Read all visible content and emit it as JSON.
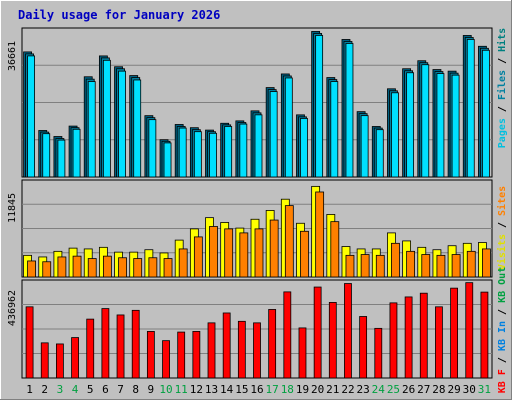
{
  "window": {
    "title": "Daily usage for January 2026"
  },
  "colors": {
    "frame_bg": "#c0c0c0",
    "frame_bevel_light": "#ffffff",
    "frame_bevel_dark": "#808080",
    "plot_bg": "#c0c0c0",
    "title_color": "#0000c0",
    "axis_text": "#000000",
    "weekend_text": "#00a040",
    "pages_front": "#00e0ff",
    "pages_back": "#0080a0",
    "files_back": "#006080",
    "visits_color": "#ffff00",
    "sites_color": "#ff8000",
    "kb_color": "#ff0000",
    "label_sep": "#000000",
    "label_pages": "#00c0e0",
    "label_files": "#0080a0",
    "label_hits": "#008080",
    "label_visits": "#e0e000",
    "label_sites": "#ff8000",
    "label_kbin": "#0080e0",
    "label_kbout": "#00a040",
    "label_kbf": "#ff0000"
  },
  "chart_data": [
    {
      "type": "bar",
      "panel": "hits-files-pages",
      "ymax_label": "36661",
      "ylim": [
        0,
        36661
      ],
      "right_labels": [
        "Pages",
        "Files",
        "Hits"
      ],
      "categories": [
        "1",
        "2",
        "3",
        "4",
        "5",
        "6",
        "7",
        "8",
        "9",
        "10",
        "11",
        "12",
        "13",
        "14",
        "15",
        "16",
        "17",
        "18",
        "19",
        "20",
        "21",
        "22",
        "23",
        "24",
        "25",
        "26",
        "27",
        "28",
        "29",
        "30",
        "31"
      ],
      "series": [
        {
          "name": "Hits",
          "values": [
            31200,
            11600,
            10100,
            12700,
            25000,
            30200,
            27500,
            25300,
            15300,
            9300,
            13100,
            12300,
            11700,
            13400,
            14000,
            16500,
            22300,
            25700,
            15500,
            36300,
            24800,
            34300,
            16300,
            12600,
            22000,
            27000,
            29000,
            26800,
            26400,
            35300,
            32600
          ]
        },
        {
          "name": "Files",
          "values": [
            30700,
            11200,
            9600,
            12300,
            24400,
            29700,
            27000,
            24800,
            14800,
            8900,
            12600,
            11800,
            11300,
            13000,
            13600,
            16000,
            21800,
            25200,
            15000,
            35800,
            24300,
            33800,
            15800,
            12200,
            21500,
            26500,
            28500,
            26300,
            25900,
            34800,
            32100
          ]
        },
        {
          "name": "Pages",
          "values": [
            30200,
            10800,
            9200,
            11900,
            23800,
            29100,
            26400,
            24200,
            14300,
            8500,
            12200,
            11300,
            10900,
            12600,
            13200,
            15500,
            21300,
            24700,
            14600,
            35300,
            23800,
            33300,
            15300,
            11800,
            21000,
            26000,
            28000,
            25800,
            25400,
            34300,
            31600
          ]
        }
      ]
    },
    {
      "type": "bar",
      "panel": "visits-sites",
      "ymax_label": "11845",
      "ylim": [
        0,
        11845
      ],
      "right_labels": [
        "Visits",
        "Sites"
      ],
      "categories": [
        "1",
        "2",
        "3",
        "4",
        "5",
        "6",
        "7",
        "8",
        "9",
        "10",
        "11",
        "12",
        "13",
        "14",
        "15",
        "16",
        "17",
        "18",
        "19",
        "20",
        "21",
        "22",
        "23",
        "24",
        "25",
        "26",
        "27",
        "28",
        "29",
        "30",
        "31"
      ],
      "series": [
        {
          "name": "Visits",
          "values": [
            2700,
            2500,
            3200,
            3600,
            3500,
            3700,
            3100,
            3100,
            3400,
            3000,
            4600,
            6000,
            7400,
            6800,
            6100,
            7200,
            8300,
            9700,
            6700,
            11300,
            7800,
            3800,
            3500,
            3500,
            5500,
            4500,
            3700,
            3400,
            3900,
            4200,
            4300
          ]
        },
        {
          "name": "Sites",
          "values": [
            2000,
            1900,
            2500,
            2600,
            2300,
            2600,
            2400,
            2300,
            2400,
            2300,
            3500,
            5000,
            6300,
            6000,
            5500,
            6000,
            7100,
            8900,
            5700,
            10600,
            6900,
            2700,
            2800,
            2700,
            4200,
            3200,
            2800,
            2700,
            2800,
            3200,
            3500
          ]
        }
      ]
    },
    {
      "type": "bar",
      "panel": "kbytes",
      "ymax_label": "436962",
      "ylim": [
        0,
        436962
      ],
      "right_labels": [
        "KB F",
        "KB In",
        "KB Out"
      ],
      "categories": [
        "1",
        "2",
        "3",
        "4",
        "5",
        "6",
        "7",
        "8",
        "9",
        "10",
        "11",
        "12",
        "13",
        "14",
        "15",
        "16",
        "17",
        "18",
        "19",
        "20",
        "21",
        "22",
        "23",
        "24",
        "25",
        "26",
        "27",
        "28",
        "29",
        "30",
        "31"
      ],
      "series": [
        {
          "name": "KB F",
          "values": [
            324000,
            160000,
            155000,
            184000,
            268000,
            316000,
            287000,
            308000,
            212000,
            170000,
            209000,
            212000,
            251000,
            296000,
            258000,
            251000,
            312000,
            392000,
            228000,
            414000,
            344000,
            430000,
            280000,
            226000,
            342000,
            369000,
            386000,
            324000,
            409000,
            434000,
            391000
          ]
        }
      ]
    }
  ],
  "x_weekend_days": [
    3,
    4,
    10,
    11,
    17,
    18,
    24,
    25,
    31
  ]
}
